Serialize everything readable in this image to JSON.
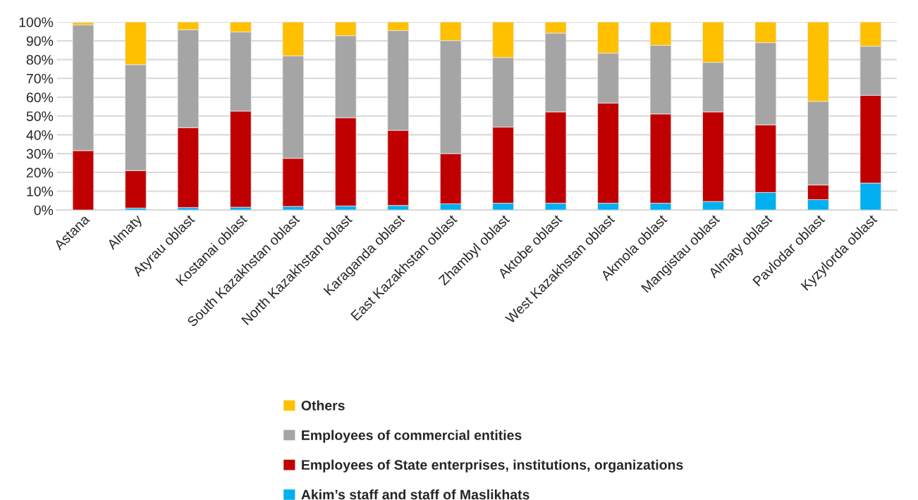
{
  "chart_data": {
    "type": "bar",
    "stacked": true,
    "categories": [
      "Astana",
      "Almaty",
      "Atyrau oblast",
      "Kostanai oblast",
      "South Kazakhstan oblast",
      "North Kazakhstan oblast",
      "Karaganda oblast",
      "East Kazakhstan oblast",
      "Zhambyl oblast",
      "Aktobe oblast",
      "West Kazakhstan oblast",
      "Akmola oblast",
      "Mangistau oblast",
      "Almaty oblast",
      "Pavlodar oblast",
      "Kyzylorda oblast"
    ],
    "series": [
      {
        "name": "Akim’s staff and staff of Maslikhats",
        "color": "#00b0f0",
        "values": [
          null,
          1.0,
          1.3,
          1.5,
          1.9,
          2.1,
          2.4,
          3.3,
          3.6,
          3.6,
          3.6,
          3.6,
          4.5,
          9.3,
          5.5,
          14.3
        ]
      },
      {
        "name": "Employees of State enterprises, institutions, organizations",
        "color": "#c00000",
        "values": [
          31.6,
          20.0,
          42.5,
          51.1,
          25.6,
          47.0,
          40.0,
          26.7,
          40.5,
          48.6,
          53.3,
          47.5,
          47.7,
          36.0,
          7.8,
          46.7
        ]
      },
      {
        "name": "Employees of commercial entities",
        "color": "#a5a5a5",
        "values": [
          66.8,
          56.3,
          52.1,
          42.1,
          54.5,
          43.6,
          53.0,
          60.1,
          37.0,
          41.9,
          26.5,
          36.5,
          26.3,
          43.7,
          44.5,
          26.1
        ]
      },
      {
        "name": "Others",
        "color": "#ffc000",
        "values": [
          1.3,
          22.7,
          4.1,
          5.3,
          18.0,
          7.3,
          4.6,
          9.9,
          18.9,
          5.9,
          16.6,
          12.4,
          21.5,
          11.0,
          42.2,
          12.9
        ]
      }
    ],
    "ylim": [
      0,
      100
    ],
    "yticks": [
      {
        "value": 0,
        "label": "0%"
      },
      {
        "value": 10,
        "label": "10%"
      },
      {
        "value": 20,
        "label": "20%"
      },
      {
        "value": 30,
        "label": "30%"
      },
      {
        "value": 40,
        "label": "40%"
      },
      {
        "value": 50,
        "label": "50%"
      },
      {
        "value": 60,
        "label": "60%"
      },
      {
        "value": 70,
        "label": "70%"
      },
      {
        "value": 80,
        "label": "80%"
      },
      {
        "value": 90,
        "label": "90%"
      },
      {
        "value": 100,
        "label": "100%"
      }
    ],
    "grid": "y",
    "legend": "bottom"
  }
}
